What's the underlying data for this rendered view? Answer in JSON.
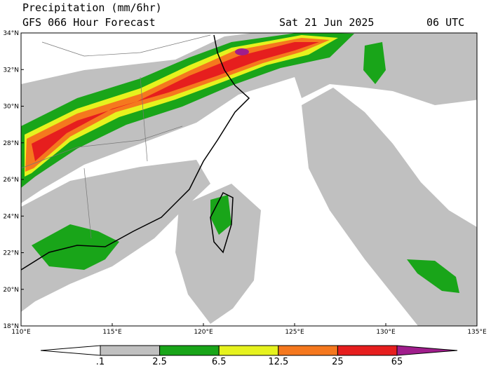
{
  "header": {
    "title": "Precipitation (mm/6hr)",
    "subtitle": "GFS 066 Hour Forecast",
    "date": "Sat 21 Jun 2025",
    "time": "06 UTC"
  },
  "lat_labels": [
    "34°N",
    "32°N",
    "30°N",
    "28°N",
    "26°N",
    "24°N",
    "22°N",
    "20°N",
    "18°N"
  ],
  "lon_labels": [
    "110°E",
    "115°E",
    "120°E",
    "125°E",
    "130°E",
    "135°E"
  ],
  "colorbar": {
    "labels": [
      ".1",
      "2.5",
      "6.5",
      "12.5",
      "25",
      "65"
    ],
    "colors": [
      "#ffffff",
      "#c0c0c0",
      "#19a519",
      "#e6f21e",
      "#f5781e",
      "#e61e1e",
      "#a01e8c"
    ]
  }
}
